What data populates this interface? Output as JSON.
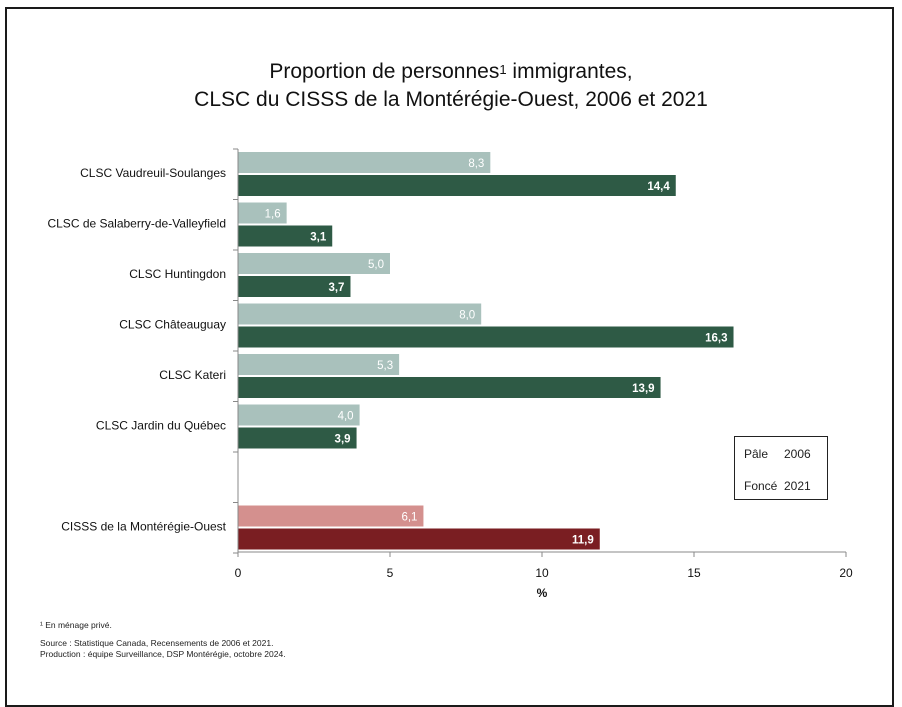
{
  "chart_data": {
    "type": "bar",
    "orientation": "horizontal",
    "title_main": "Proportion de personnes",
    "title_sup": "1",
    "title_rest": " immigrantes,",
    "title_line2": "CLSC du CISSS de la Montérégie-Ouest, 2006 et 2021",
    "xlabel": "%",
    "xlim": [
      0,
      20
    ],
    "xticks": [
      "0",
      "5",
      "10",
      "15",
      "20"
    ],
    "grid": false,
    "categories": [
      "CLSC Vaudreuil-Soulanges",
      "CLSC de Salaberry-de-Valleyfield",
      "CLSC Huntingdon",
      "CLSC Châteauguay",
      "CLSC Kateri",
      "CLSC Jardin du Québec",
      "",
      "CISSS de la Montérégie-Ouest"
    ],
    "series": [
      {
        "values": [
          8.3,
          1.6,
          5.0,
          8.0,
          5.3,
          4.0,
          null,
          6.1
        ],
        "labels": [
          "8,3",
          "1,6",
          "5,0",
          "8,0",
          "5,3",
          "4,0",
          "",
          "6,1"
        ],
        "colors": [
          "#a9c1bc",
          "#a9c1bc",
          "#a9c1bc",
          "#a9c1bc",
          "#a9c1bc",
          "#a9c1bc",
          "#a9c1bc",
          "#d4908e"
        ]
      },
      {
        "values": [
          14.4,
          3.1,
          3.7,
          16.3,
          13.9,
          3.9,
          null,
          11.9
        ],
        "labels": [
          "14,4",
          "3,1",
          "3,7",
          "16,3",
          "13,9",
          "3,9",
          "",
          "11,9"
        ],
        "colors": [
          "#2e5a45",
          "#2e5a45",
          "#2e5a45",
          "#2e5a45",
          "#2e5a45",
          "#2e5a45",
          "#2e5a45",
          "#7a1e22"
        ]
      }
    ],
    "legend": {
      "placement": "bottom-right",
      "entries": [
        {
          "shade": "Pâle",
          "year": "2006"
        },
        {
          "shade": "Foncé",
          "year": "2021"
        }
      ]
    }
  },
  "footer": {
    "note": "¹ En ménage privé.",
    "source": "Source : Statistique Canada, Recensements de 2006 et 2021.",
    "production": "Production : équipe Surveillance, DSP Montérégie, octobre 2024."
  }
}
